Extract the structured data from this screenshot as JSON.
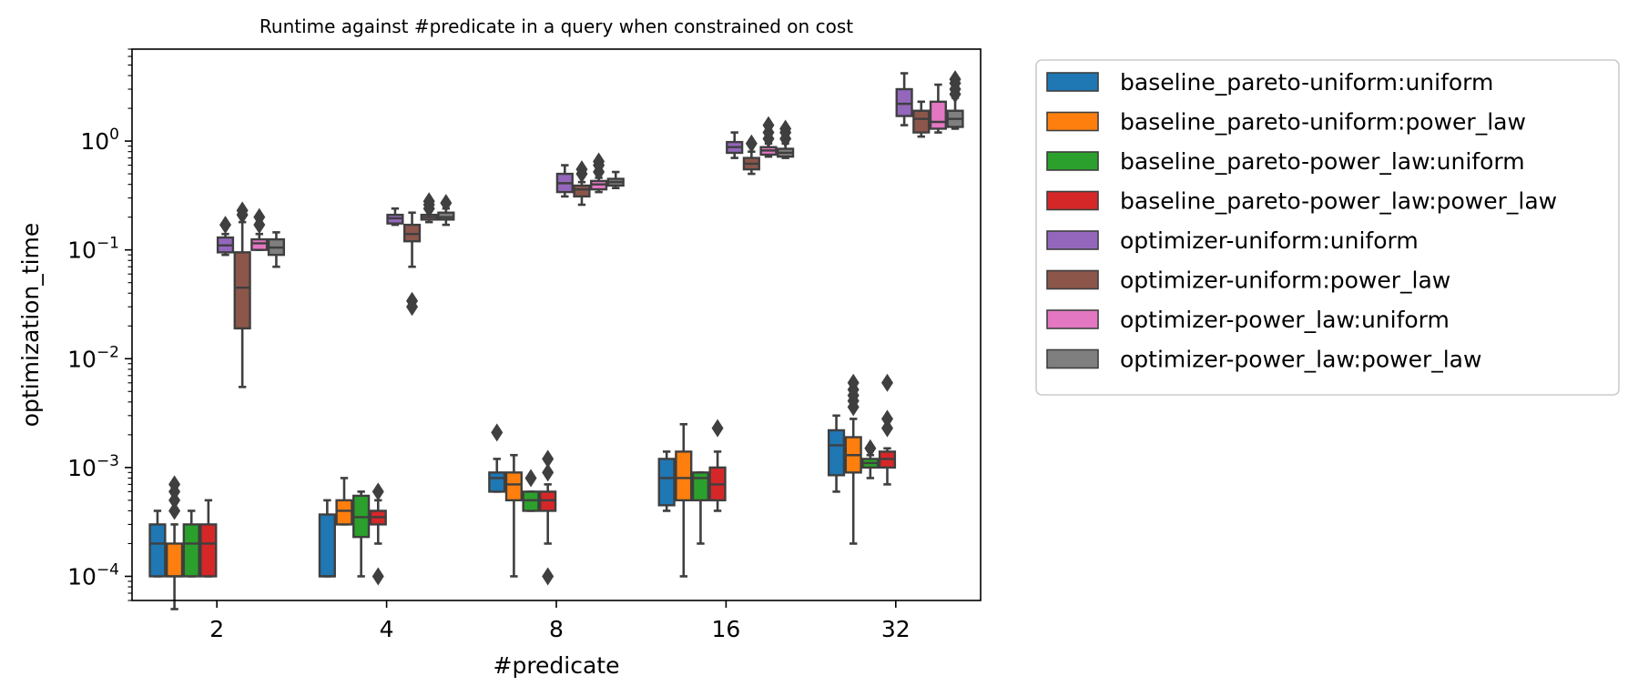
{
  "chart_data": {
    "type": "boxplot",
    "title": "Runtime against #predicate in a query when constrained on cost",
    "xlabel": "#predicate",
    "ylabel": "optimization_time",
    "yscale": "log",
    "ylim": [
      6e-05,
      7
    ],
    "grid": false,
    "legend_position": "outside-right",
    "categories": [
      "2",
      "4",
      "8",
      "16",
      "32"
    ],
    "y_ticks": [
      {
        "value": 0.0001,
        "base": "10",
        "exp": "−4"
      },
      {
        "value": 0.001,
        "base": "10",
        "exp": "−3"
      },
      {
        "value": 0.01,
        "base": "10",
        "exp": "−2"
      },
      {
        "value": 0.1,
        "base": "10",
        "exp": "−1"
      },
      {
        "value": 1,
        "base": "10",
        "exp": "0"
      }
    ],
    "series": [
      {
        "name": "baseline_pareto-uniform:uniform",
        "color": "#1f77b4",
        "boxes": [
          {
            "whislo": 0.0001,
            "q1": 0.0001,
            "med": 0.0002,
            "q3": 0.0003,
            "whishi": 0.0004,
            "fliers": []
          },
          {
            "whislo": 0.0001,
            "q1": 0.0001,
            "med": 0.0001,
            "q3": 0.00037,
            "whishi": 0.0005,
            "fliers": []
          },
          {
            "whislo": 0.0006,
            "q1": 0.0006,
            "med": 0.0008,
            "q3": 0.0009,
            "whishi": 0.0012,
            "fliers": [
              0.0021
            ]
          },
          {
            "whislo": 0.0004,
            "q1": 0.00045,
            "med": 0.0008,
            "q3": 0.0012,
            "whishi": 0.0014,
            "fliers": []
          },
          {
            "whislo": 0.0006,
            "q1": 0.00085,
            "med": 0.0016,
            "q3": 0.0022,
            "whishi": 0.003,
            "fliers": []
          }
        ]
      },
      {
        "name": "baseline_pareto-uniform:power_law",
        "color": "#ff7f0e",
        "boxes": [
          {
            "whislo": 5e-05,
            "q1": 0.0001,
            "med": 0.0001,
            "q3": 0.0002,
            "whishi": 0.0003,
            "fliers": [
              0.0004,
              0.0005,
              0.0006,
              0.0007
            ]
          },
          {
            "whislo": 0.0003,
            "q1": 0.0003,
            "med": 0.0004,
            "q3": 0.0005,
            "whishi": 0.0008,
            "fliers": []
          },
          {
            "whislo": 0.0001,
            "q1": 0.0005,
            "med": 0.0007,
            "q3": 0.0009,
            "whishi": 0.0013,
            "fliers": []
          },
          {
            "whislo": 0.0001,
            "q1": 0.0005,
            "med": 0.0008,
            "q3": 0.0014,
            "whishi": 0.0025,
            "fliers": []
          },
          {
            "whislo": 0.0002,
            "q1": 0.0009,
            "med": 0.0013,
            "q3": 0.0019,
            "whishi": 0.0028,
            "fliers": [
              0.0036,
              0.0041,
              0.0046,
              0.0052,
              0.006
            ]
          }
        ]
      },
      {
        "name": "baseline_pareto-power_law:uniform",
        "color": "#2ca02c",
        "boxes": [
          {
            "whislo": 0.0001,
            "q1": 0.0001,
            "med": 0.0002,
            "q3": 0.0003,
            "whishi": 0.0004,
            "fliers": []
          },
          {
            "whislo": 0.0001,
            "q1": 0.00023,
            "med": 0.00035,
            "q3": 0.00055,
            "whishi": 0.0006,
            "fliers": []
          },
          {
            "whislo": 0.0004,
            "q1": 0.0004,
            "med": 0.0005,
            "q3": 0.0006,
            "whishi": 0.0006,
            "fliers": [
              0.0008
            ]
          },
          {
            "whislo": 0.0002,
            "q1": 0.0005,
            "med": 0.0008,
            "q3": 0.0009,
            "whishi": 0.0009,
            "fliers": []
          },
          {
            "whislo": 0.0008,
            "q1": 0.001,
            "med": 0.0011,
            "q3": 0.0012,
            "whishi": 0.0013,
            "fliers": [
              0.0015
            ]
          }
        ]
      },
      {
        "name": "baseline_pareto-power_law:power_law",
        "color": "#d62728",
        "boxes": [
          {
            "whislo": 0.0001,
            "q1": 0.0001,
            "med": 0.0002,
            "q3": 0.0003,
            "whishi": 0.0005,
            "fliers": []
          },
          {
            "whislo": 0.0002,
            "q1": 0.0003,
            "med": 0.00035,
            "q3": 0.0004,
            "whishi": 0.0005,
            "fliers": [
              0.0001,
              0.0006
            ]
          },
          {
            "whislo": 0.0002,
            "q1": 0.0004,
            "med": 0.0005,
            "q3": 0.0006,
            "whishi": 0.0007,
            "fliers": [
              0.0001,
              0.0009,
              0.0012
            ]
          },
          {
            "whislo": 0.0004,
            "q1": 0.0005,
            "med": 0.0007,
            "q3": 0.001,
            "whishi": 0.0014,
            "fliers": [
              0.0023
            ]
          },
          {
            "whislo": 0.0007,
            "q1": 0.001,
            "med": 0.0012,
            "q3": 0.0014,
            "whishi": 0.0015,
            "fliers": [
              0.0023,
              0.0028,
              0.006
            ]
          }
        ]
      },
      {
        "name": "optimizer-uniform:uniform",
        "color": "#9467bd",
        "boxes": [
          {
            "whislo": 0.09,
            "q1": 0.095,
            "med": 0.11,
            "q3": 0.13,
            "whishi": 0.14,
            "fliers": [
              0.17
            ]
          },
          {
            "whislo": 0.17,
            "q1": 0.175,
            "med": 0.195,
            "q3": 0.21,
            "whishi": 0.24,
            "fliers": []
          },
          {
            "whislo": 0.31,
            "q1": 0.34,
            "med": 0.41,
            "q3": 0.5,
            "whishi": 0.6,
            "fliers": []
          },
          {
            "whislo": 0.7,
            "q1": 0.78,
            "med": 0.88,
            "q3": 0.98,
            "whishi": 1.2,
            "fliers": []
          },
          {
            "whislo": 1.4,
            "q1": 1.7,
            "med": 2.2,
            "q3": 3.0,
            "whishi": 4.2,
            "fliers": []
          }
        ]
      },
      {
        "name": "optimizer-uniform:power_law",
        "color": "#8c564b",
        "boxes": [
          {
            "whislo": 0.0055,
            "q1": 0.019,
            "med": 0.045,
            "q3": 0.095,
            "whishi": 0.18,
            "fliers": [
              0.21,
              0.23
            ]
          },
          {
            "whislo": 0.07,
            "q1": 0.12,
            "med": 0.14,
            "q3": 0.17,
            "whishi": 0.22,
            "fliers": [
              0.03,
              0.034
            ]
          },
          {
            "whislo": 0.26,
            "q1": 0.31,
            "med": 0.36,
            "q3": 0.39,
            "whishi": 0.42,
            "fliers": [
              0.5,
              0.55
            ]
          },
          {
            "whislo": 0.5,
            "q1": 0.55,
            "med": 0.62,
            "q3": 0.7,
            "whishi": 0.8,
            "fliers": [
              0.95
            ]
          },
          {
            "whislo": 1.1,
            "q1": 1.2,
            "med": 1.6,
            "q3": 1.9,
            "whishi": 2.3,
            "fliers": []
          }
        ]
      },
      {
        "name": "optimizer-power_law:uniform",
        "color": "#e377c2",
        "boxes": [
          {
            "whislo": 0.1,
            "q1": 0.1,
            "med": 0.115,
            "q3": 0.125,
            "whishi": 0.14,
            "fliers": [
              0.17,
              0.2
            ]
          },
          {
            "whislo": 0.18,
            "q1": 0.19,
            "med": 0.2,
            "q3": 0.21,
            "whishi": 0.23,
            "fliers": [
              0.24,
              0.26,
              0.28
            ]
          },
          {
            "whislo": 0.34,
            "q1": 0.36,
            "med": 0.4,
            "q3": 0.43,
            "whishi": 0.46,
            "fliers": [
              0.52,
              0.6,
              0.65
            ]
          },
          {
            "whislo": 0.72,
            "q1": 0.75,
            "med": 0.82,
            "q3": 0.88,
            "whishi": 0.95,
            "fliers": [
              1.05,
              1.2,
              1.4
            ]
          },
          {
            "whislo": 1.2,
            "q1": 1.3,
            "med": 1.5,
            "q3": 2.3,
            "whishi": 3.3,
            "fliers": []
          }
        ]
      },
      {
        "name": "optimizer-power_law:power_law",
        "color": "#7f7f7f",
        "boxes": [
          {
            "whislo": 0.07,
            "q1": 0.09,
            "med": 0.105,
            "q3": 0.125,
            "whishi": 0.145,
            "fliers": []
          },
          {
            "whislo": 0.17,
            "q1": 0.19,
            "med": 0.2,
            "q3": 0.22,
            "whishi": 0.24,
            "fliers": [
              0.27
            ]
          },
          {
            "whislo": 0.37,
            "q1": 0.39,
            "med": 0.42,
            "q3": 0.45,
            "whishi": 0.52,
            "fliers": []
          },
          {
            "whislo": 0.7,
            "q1": 0.72,
            "med": 0.78,
            "q3": 0.85,
            "whishi": 0.95,
            "fliers": [
              1.05,
              1.2,
              1.3
            ]
          },
          {
            "whislo": 1.3,
            "q1": 1.35,
            "med": 1.6,
            "q3": 1.9,
            "whishi": 2.5,
            "fliers": [
              2.7,
              3.0,
              3.4,
              3.7
            ]
          }
        ]
      }
    ]
  }
}
